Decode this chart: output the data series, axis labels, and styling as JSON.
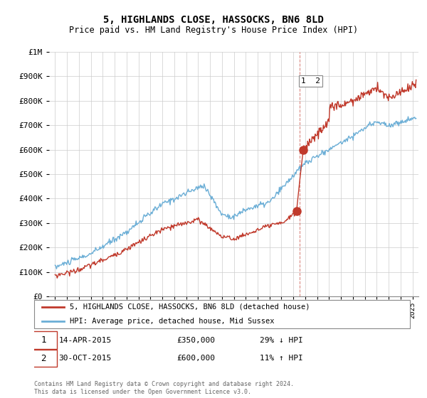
{
  "title": "5, HIGHLANDS CLOSE, HASSOCKS, BN6 8LD",
  "subtitle": "Price paid vs. HM Land Registry's House Price Index (HPI)",
  "title_fontsize": 10,
  "subtitle_fontsize": 8.5,
  "hpi_color": "#6baed6",
  "price_color": "#c0392b",
  "ylim": [
    0,
    1000000
  ],
  "yticks": [
    0,
    100000,
    200000,
    300000,
    400000,
    500000,
    600000,
    700000,
    800000,
    900000,
    1000000
  ],
  "ytick_labels": [
    "£0",
    "£100K",
    "£200K",
    "£300K",
    "£400K",
    "£500K",
    "£600K",
    "£700K",
    "£800K",
    "£900K",
    "£1M"
  ],
  "xlim_start": 1994.5,
  "xlim_end": 2025.5,
  "transaction1_date": 2015.27,
  "transaction1_price": 350000,
  "transaction2_date": 2015.83,
  "transaction2_price": 600000,
  "legend_line1": "5, HIGHLANDS CLOSE, HASSOCKS, BN6 8LD (detached house)",
  "legend_line2": "HPI: Average price, detached house, Mid Sussex",
  "footer": "Contains HM Land Registry data © Crown copyright and database right 2024.\nThis data is licensed under the Open Government Licence v3.0.",
  "dashed_x": 2015.55
}
